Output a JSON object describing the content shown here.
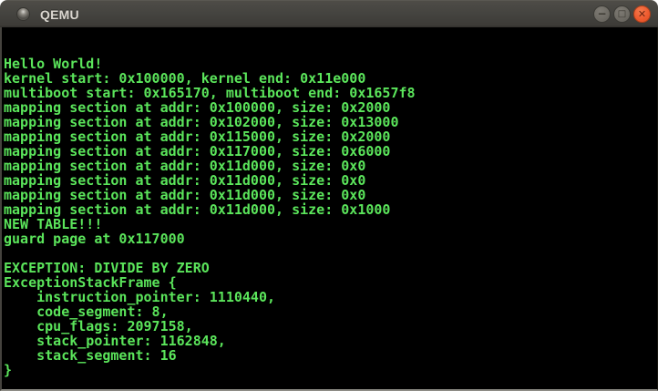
{
  "window": {
    "title": "QEMU",
    "titlebar_color": "#454440",
    "controls": {
      "minimize_glyph": "−",
      "maximize_glyph": "□",
      "close_glyph": "✕",
      "button_color": "#6e6b64",
      "close_color": "#ee5b2f"
    }
  },
  "terminal": {
    "foreground": "#5be55b",
    "background": "#000000",
    "lines": [
      "",
      "",
      "Hello World!",
      "kernel start: 0x100000, kernel end: 0x11e000",
      "multiboot start: 0x165170, multiboot end: 0x1657f8",
      "mapping section at addr: 0x100000, size: 0x2000",
      "mapping section at addr: 0x102000, size: 0x13000",
      "mapping section at addr: 0x115000, size: 0x2000",
      "mapping section at addr: 0x117000, size: 0x6000",
      "mapping section at addr: 0x11d000, size: 0x0",
      "mapping section at addr: 0x11d000, size: 0x0",
      "mapping section at addr: 0x11d000, size: 0x0",
      "mapping section at addr: 0x11d000, size: 0x1000",
      "NEW TABLE!!!",
      "guard page at 0x117000",
      "",
      "EXCEPTION: DIVIDE BY ZERO",
      "ExceptionStackFrame {",
      "    instruction_pointer: 1110440,",
      "    code_segment: 8,",
      "    cpu_flags: 2097158,",
      "    stack_pointer: 1162848,",
      "    stack_segment: 16",
      "}"
    ]
  }
}
